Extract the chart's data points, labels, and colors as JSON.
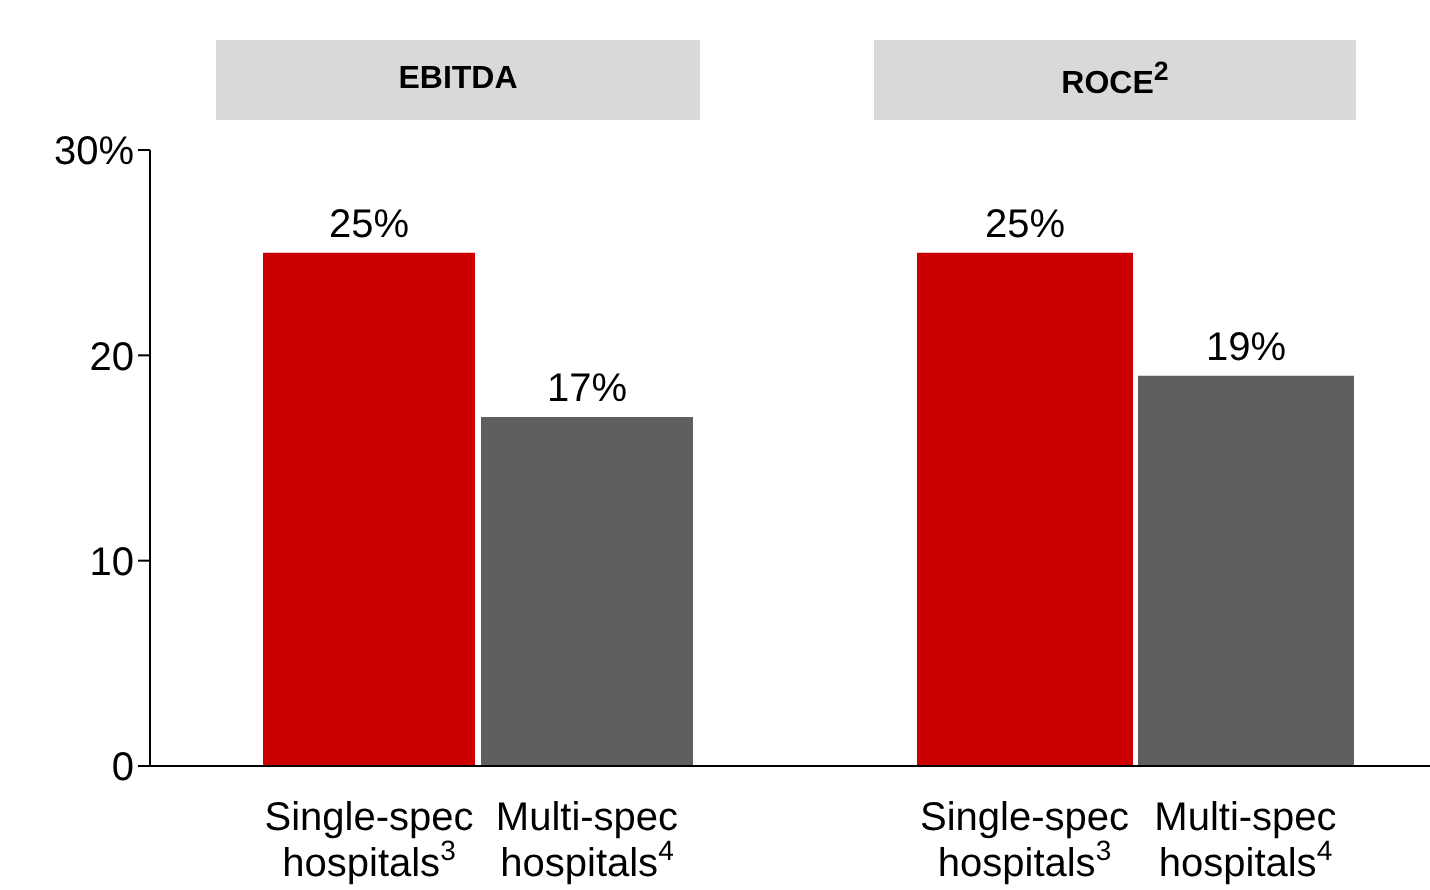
{
  "chart_data": [
    {
      "type": "bar",
      "title": "EBITDA",
      "categories": [
        "Single-spec hospitals$^{3}$",
        "Multi-spec hospitals$^{4}$"
      ],
      "values": [
        25,
        17
      ],
      "colors": [
        "#cc0000",
        "#5f5f5f"
      ],
      "value_labels": [
        "25%",
        "17%"
      ],
      "ylim": [
        0,
        30
      ],
      "yticks": [
        0,
        10,
        20,
        {
          "value": 30,
          "label": "30%"
        }
      ]
    },
    {
      "type": "bar",
      "title": "ROCE$^{2}$",
      "categories": [
        "Single-spec hospitals$^{3}$",
        "Multi-spec hospitals$^{4}$"
      ],
      "values": [
        25,
        19
      ],
      "colors": [
        "#cc0000",
        "#5f5f5f"
      ],
      "value_labels": [
        "25%",
        "19%"
      ],
      "ylim": [
        0,
        30
      ],
      "tick_labels": "x"
    }
  ]
}
